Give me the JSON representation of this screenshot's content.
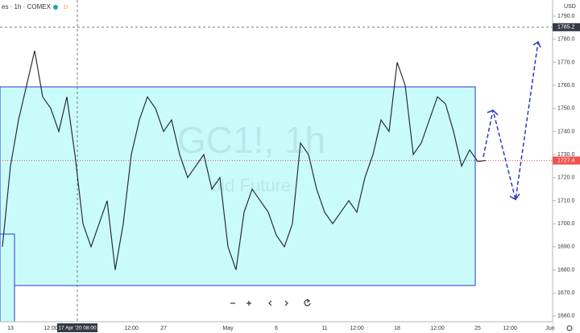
{
  "chart_data": {
    "type": "line",
    "title": "es · 1h · COMEX",
    "badge": "D",
    "watermark": [
      "GC1!, 1h",
      "old Future"
    ],
    "currency": "USD",
    "crosshair": {
      "x_label": "17 Apr '20 08:00",
      "price": 1785.2
    },
    "last_price": 1727.4,
    "color": "#2a2e39",
    "categories": [
      null,
      "13",
      null,
      null,
      null,
      null,
      "12:00",
      null,
      null,
      null,
      null,
      null,
      null,
      null,
      null,
      null,
      "12:00",
      null,
      null,
      null,
      "27",
      null,
      null,
      null,
      null,
      null,
      null,
      null,
      "May",
      null,
      null,
      null,
      null,
      null,
      "6",
      null,
      null,
      null,
      null,
      null,
      "11",
      null,
      null,
      null,
      "12:00",
      null,
      null,
      null,
      null,
      "18",
      null,
      null,
      null,
      null,
      "12:00",
      null,
      null,
      null,
      null,
      "25",
      null,
      null,
      null,
      "12:00",
      null,
      null,
      null,
      null,
      "Jun"
    ],
    "values": [
      1690,
      1725,
      1745,
      1760,
      1775,
      1755,
      1750,
      1740,
      1755,
      1730,
      1700,
      1690,
      1700,
      1710,
      1680,
      1700,
      1730,
      1745,
      1755,
      1750,
      1740,
      1745,
      1730,
      1720,
      1725,
      1730,
      1715,
      1720,
      1690,
      1680,
      1705,
      1715,
      1710,
      1705,
      1695,
      1690,
      1700,
      1735,
      1730,
      1715,
      1705,
      1700,
      1705,
      1710,
      1705,
      1720,
      1730,
      1745,
      1740,
      1770,
      1760,
      1730,
      1735,
      1745,
      1755,
      1752,
      1740,
      1725,
      1732,
      1727,
      1727.4,
      null,
      null,
      null,
      null,
      null,
      null,
      null,
      null
    ],
    "ylim": [
      1657.5,
      1797
    ],
    "yticks": [
      {
        "value": 1660,
        "label": "1660.0"
      },
      {
        "value": 1670,
        "label": "1670.0"
      },
      {
        "value": 1680,
        "label": "1680.0"
      },
      {
        "value": 1690,
        "label": "1690.0"
      },
      {
        "value": 1700,
        "label": "1700.0"
      },
      {
        "value": 1710,
        "label": "1710.0"
      },
      {
        "value": 1720,
        "label": "1720.0"
      },
      {
        "value": 1730,
        "label": "1730.0"
      },
      {
        "value": 1740,
        "label": "1740.0"
      },
      {
        "value": 1750,
        "label": "1750.0"
      },
      {
        "value": 1760,
        "label": "1760.0"
      },
      {
        "value": 1770,
        "label": "1770.0"
      },
      {
        "value": 1780,
        "label": "1780.0"
      },
      {
        "value": 1790,
        "label": "1790.0"
      }
    ]
  }
}
